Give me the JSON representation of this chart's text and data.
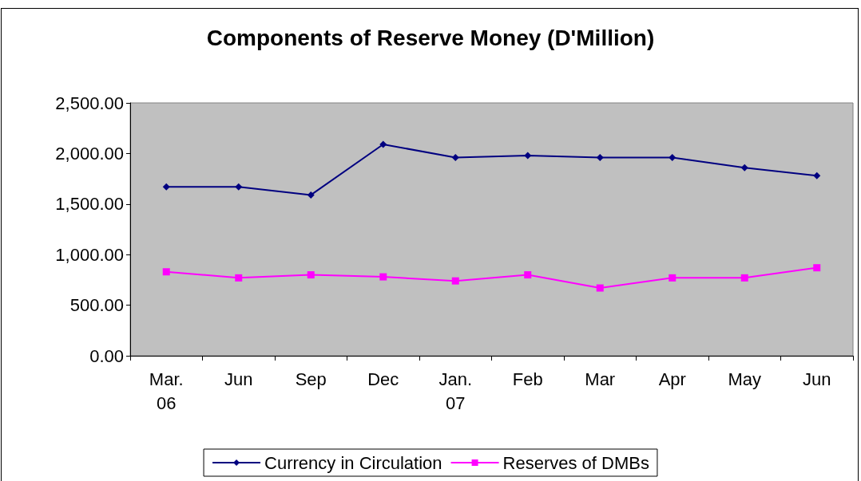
{
  "chart_data": {
    "type": "line",
    "title": "Components of Reserve Money (D'Million)",
    "categories": [
      "Mar.\n06",
      "Jun",
      "Sep",
      "Dec",
      "Jan.\n07",
      "Feb",
      "Mar",
      "Apr",
      "May",
      "Jun"
    ],
    "series": [
      {
        "name": "Currency in Circulation",
        "color": "#000080",
        "marker": "diamond",
        "values": [
          1670,
          1670,
          1590,
          2090,
          1960,
          1980,
          1960,
          1960,
          1860,
          1780
        ]
      },
      {
        "name": "Reserves of DMBs",
        "color": "#ff00ff",
        "marker": "square",
        "values": [
          830,
          770,
          800,
          780,
          740,
          800,
          670,
          770,
          770,
          870
        ]
      }
    ],
    "ylim": [
      0,
      2500
    ],
    "yticks": [
      {
        "value": 0,
        "label": "0.00"
      },
      {
        "value": 500,
        "label": "500.00"
      },
      {
        "value": 1000,
        "label": "1,000.00"
      },
      {
        "value": 1500,
        "label": "1,500.00"
      },
      {
        "value": 2000,
        "label": "2,000.00"
      },
      {
        "value": 2500,
        "label": "2,500.00"
      }
    ],
    "grid": false,
    "legend": "bottom",
    "line_style": "solid"
  }
}
